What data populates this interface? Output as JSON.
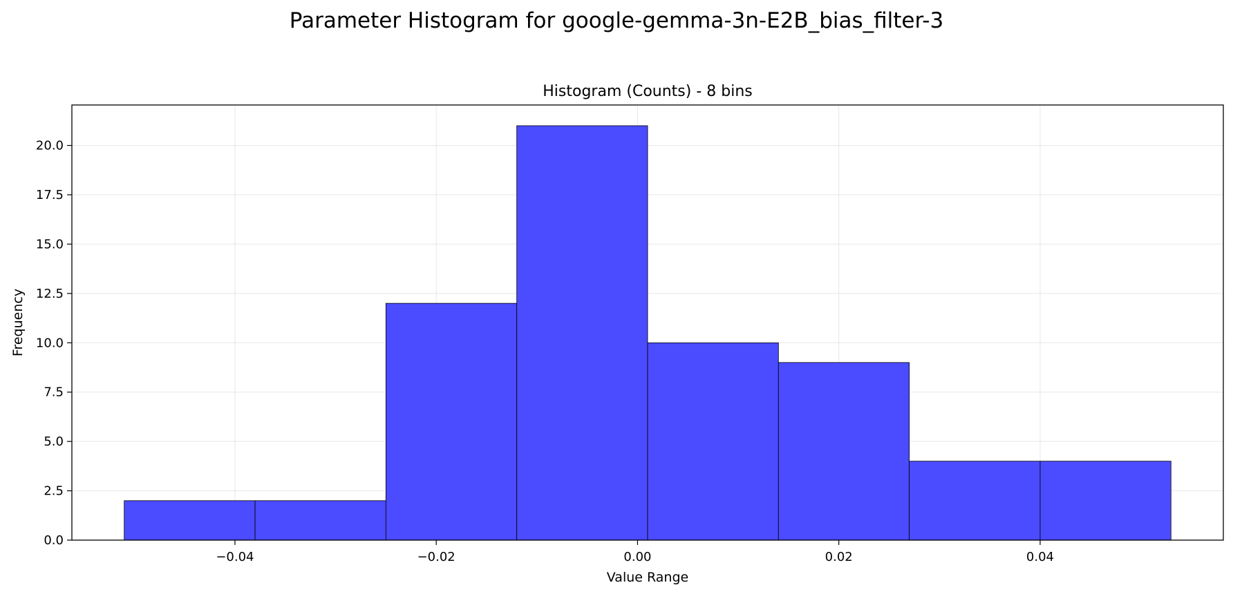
{
  "chart_data": {
    "type": "bar",
    "title": "Parameter Histogram for google-gemma-3n-E2B_bias_filter-3",
    "subtitle": "Histogram (Counts) - 8 bins",
    "xlabel": "Value Range",
    "ylabel": "Frequency",
    "bin_edges": [
      -0.051,
      -0.038,
      -0.025,
      -0.012,
      0.001,
      0.014,
      0.027,
      0.04,
      0.053
    ],
    "values": [
      2,
      2,
      12,
      21,
      10,
      9,
      4,
      4
    ],
    "xlim": [
      -0.0562,
      0.0582
    ],
    "ylim": [
      0,
      22.05
    ],
    "x_ticks": [
      -0.04,
      -0.02,
      0.0,
      0.02,
      0.04
    ],
    "x_tick_labels": [
      "−0.04",
      "−0.02",
      "0.00",
      "0.02",
      "0.04"
    ],
    "y_ticks": [
      0,
      2.5,
      5,
      7.5,
      10,
      12.5,
      15,
      17.5,
      20
    ],
    "y_tick_labels": [
      "0.0",
      "2.5",
      "5.0",
      "7.5",
      "10.0",
      "12.5",
      "15.0",
      "17.5",
      "20.0"
    ],
    "grid": true,
    "bar_color": "#4b4bff",
    "edge_color": "#000000"
  }
}
